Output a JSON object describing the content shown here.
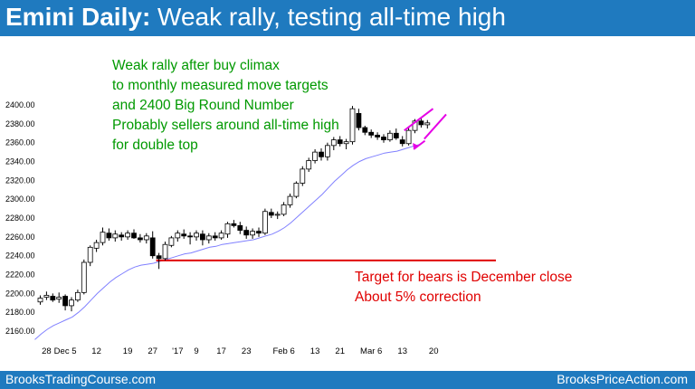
{
  "header": {
    "title_bold": "Emini Daily:",
    "title_rest": " Weak rally, testing all-time high",
    "background_color": "#1f7abf"
  },
  "footer": {
    "left": "BrooksTradingCourse.com",
    "right": "BrooksPriceAction.com"
  },
  "annotations": {
    "green_lines": [
      "Weak rally after buy climax",
      "to monthly measured move targets",
      "and 2400 Big Round Number",
      "Probably sellers around all-time high",
      "for double top"
    ],
    "red_lines": [
      "Target for bears is December close",
      "About 5% correction"
    ],
    "green_color": "#009900",
    "red_color": "#e00000",
    "magenta_color": "#e600e6"
  },
  "chart_data": {
    "type": "candlestick",
    "title": "",
    "ylim": [
      2150,
      2405
    ],
    "y_ticks": [
      2160,
      2180,
      2200,
      2220,
      2240,
      2260,
      2280,
      2300,
      2320,
      2340,
      2360,
      2380,
      2400
    ],
    "y_tick_labels": [
      "2160.00",
      "2180.00",
      "2200.00",
      "2220.00",
      "2240.00",
      "2260.00",
      "2280.00",
      "2300.00",
      "2320.00",
      "2340.00",
      "2360.00",
      "2380.00",
      "2400.00"
    ],
    "x_ticks": [
      {
        "bar": 1,
        "label": "28"
      },
      {
        "bar": 4,
        "label": "Dec 5"
      },
      {
        "bar": 9,
        "label": "12"
      },
      {
        "bar": 14,
        "label": "19"
      },
      {
        "bar": 18,
        "label": "27"
      },
      {
        "bar": 22,
        "label": "'17"
      },
      {
        "bar": 25,
        "label": "9"
      },
      {
        "bar": 29,
        "label": "17"
      },
      {
        "bar": 33,
        "label": "23"
      },
      {
        "bar": 39,
        "label": "Feb 6"
      },
      {
        "bar": 44,
        "label": "13"
      },
      {
        "bar": 48,
        "label": "21"
      },
      {
        "bar": 53,
        "label": "Mar 6"
      },
      {
        "bar": 58,
        "label": "13"
      },
      {
        "bar": 63,
        "label": "20"
      }
    ],
    "candles": [
      [
        2190,
        2197,
        2187,
        2194
      ],
      [
        2195,
        2201,
        2192,
        2197
      ],
      [
        2196,
        2199,
        2190,
        2192
      ],
      [
        2193,
        2200,
        2189,
        2195
      ],
      [
        2196,
        2198,
        2181,
        2186
      ],
      [
        2186,
        2195,
        2180,
        2192
      ],
      [
        2192,
        2203,
        2190,
        2200
      ],
      [
        2200,
        2235,
        2198,
        2232
      ],
      [
        2232,
        2250,
        2228,
        2248
      ],
      [
        2247,
        2256,
        2243,
        2253
      ],
      [
        2253,
        2269,
        2250,
        2264
      ],
      [
        2263,
        2268,
        2255,
        2258
      ],
      [
        2258,
        2266,
        2254,
        2262
      ],
      [
        2261,
        2264,
        2255,
        2259
      ],
      [
        2259,
        2266,
        2256,
        2263
      ],
      [
        2263,
        2267,
        2257,
        2258
      ],
      [
        2258,
        2262,
        2253,
        2256
      ],
      [
        2256,
        2263,
        2252,
        2260
      ],
      [
        2258,
        2265,
        2236,
        2239
      ],
      [
        2239,
        2242,
        2225,
        2236
      ],
      [
        2236,
        2254,
        2234,
        2251
      ],
      [
        2250,
        2260,
        2248,
        2258
      ],
      [
        2258,
        2266,
        2254,
        2263
      ],
      [
        2262,
        2267,
        2257,
        2260
      ],
      [
        2260,
        2264,
        2251,
        2259
      ],
      [
        2259,
        2266,
        2255,
        2263
      ],
      [
        2262,
        2266,
        2250,
        2256
      ],
      [
        2256,
        2263,
        2252,
        2260
      ],
      [
        2260,
        2264,
        2255,
        2258
      ],
      [
        2258,
        2266,
        2256,
        2263
      ],
      [
        2262,
        2275,
        2258,
        2273
      ],
      [
        2273,
        2277,
        2269,
        2271
      ],
      [
        2271,
        2275,
        2262,
        2266
      ],
      [
        2266,
        2270,
        2257,
        2261
      ],
      [
        2261,
        2268,
        2257,
        2265
      ],
      [
        2265,
        2269,
        2259,
        2263
      ],
      [
        2263,
        2289,
        2261,
        2286
      ],
      [
        2285,
        2289,
        2279,
        2282
      ],
      [
        2282,
        2286,
        2278,
        2283
      ],
      [
        2283,
        2296,
        2281,
        2293
      ],
      [
        2293,
        2305,
        2290,
        2302
      ],
      [
        2302,
        2318,
        2300,
        2316
      ],
      [
        2316,
        2334,
        2313,
        2331
      ],
      [
        2331,
        2343,
        2328,
        2340
      ],
      [
        2340,
        2352,
        2337,
        2349
      ],
      [
        2349,
        2353,
        2340,
        2344
      ],
      [
        2344,
        2359,
        2340,
        2356
      ],
      [
        2356,
        2365,
        2351,
        2362
      ],
      [
        2362,
        2366,
        2355,
        2358
      ],
      [
        2358,
        2363,
        2352,
        2360
      ],
      [
        2360,
        2398,
        2357,
        2395
      ],
      [
        2390,
        2395,
        2372,
        2375
      ],
      [
        2375,
        2377,
        2367,
        2370
      ],
      [
        2370,
        2373,
        2364,
        2367
      ],
      [
        2367,
        2370,
        2362,
        2365
      ],
      [
        2365,
        2368,
        2359,
        2362
      ],
      [
        2362,
        2372,
        2360,
        2369
      ],
      [
        2369,
        2374,
        2362,
        2364
      ],
      [
        2362,
        2366,
        2355,
        2358
      ],
      [
        2358,
        2375,
        2356,
        2372
      ],
      [
        2372,
        2384,
        2369,
        2382
      ],
      [
        2382,
        2386,
        2375,
        2378
      ],
      [
        2378,
        2383,
        2374,
        2380
      ]
    ],
    "moving_average": {
      "name": "",
      "color": "#8080ff",
      "values": [
        2150,
        2156,
        2161,
        2165,
        2168,
        2171,
        2174,
        2179,
        2185,
        2192,
        2199,
        2205,
        2211,
        2216,
        2220,
        2224,
        2227,
        2229,
        2230,
        2231,
        2233,
        2235,
        2237,
        2239,
        2241,
        2242,
        2244,
        2246,
        2248,
        2249,
        2251,
        2252,
        2253,
        2254,
        2255,
        2256,
        2258,
        2260,
        2262,
        2265,
        2269,
        2274,
        2280,
        2286,
        2292,
        2298,
        2304,
        2311,
        2318,
        2324,
        2330,
        2335,
        2339,
        2342,
        2344,
        2346,
        2348,
        2349,
        2350,
        2352,
        2354,
        2356,
        2358
      ]
    },
    "bear_target_line": {
      "y": 2234,
      "from_bar": 19,
      "color": "#e00000"
    },
    "wedge_lines": [
      {
        "x1": 58.3,
        "y1": 2372,
        "x2": 62.9,
        "y2": 2395
      },
      {
        "x1": 61.5,
        "y1": 2363,
        "x2": 65,
        "y2": 2389
      }
    ],
    "wedge_arrow": {
      "x1": 61.6,
      "y1": 2361,
      "x2": 59.8,
      "y2": 2352
    }
  }
}
